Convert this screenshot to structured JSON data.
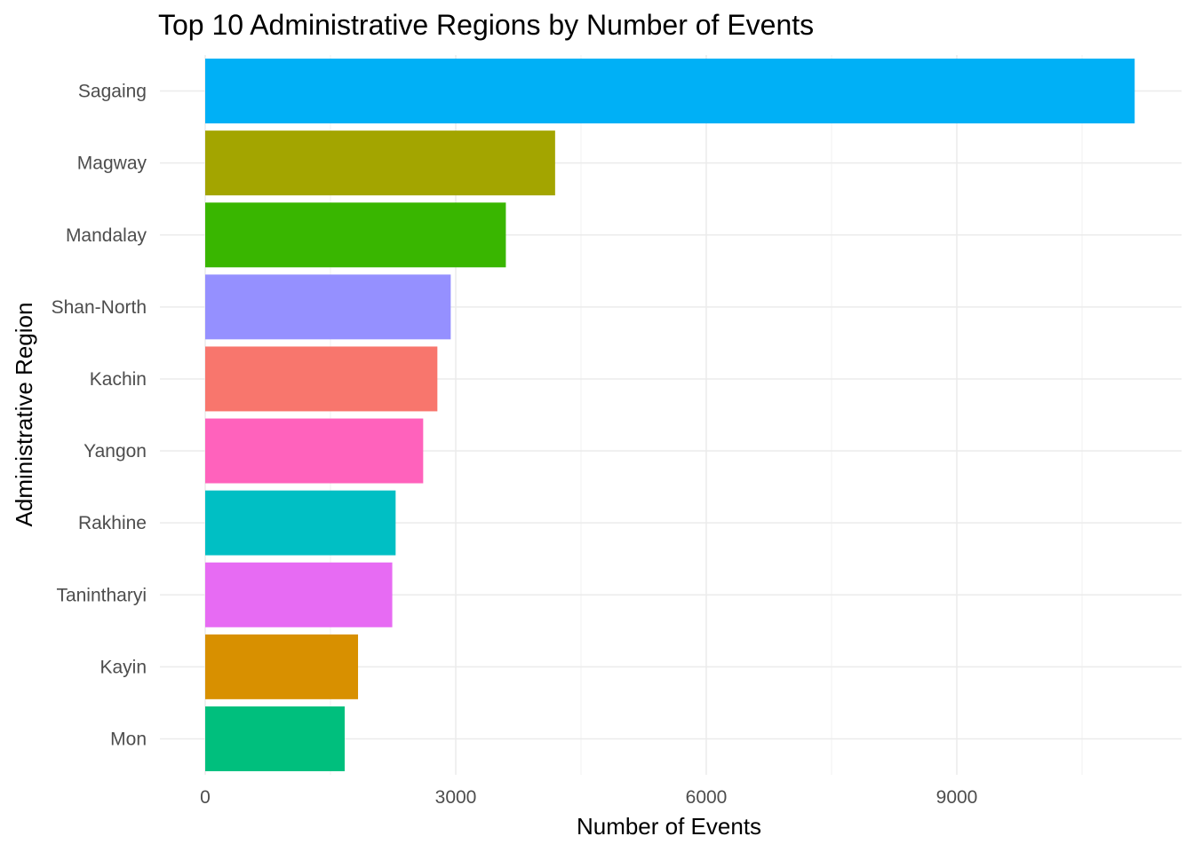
{
  "chart_data": {
    "type": "bar",
    "orientation": "horizontal",
    "title": "Top 10 Administrative Regions by Number of Events",
    "xlabel": "Number of Events",
    "ylabel": "Administrative Region",
    "xlim": [
      0,
      11700
    ],
    "x_ticks": [
      0,
      3000,
      6000,
      9000
    ],
    "x_tick_labels": [
      "0",
      "3000",
      "6000",
      "9000"
    ],
    "grid": true,
    "legend": "none",
    "categories": [
      "Sagaing",
      "Magway",
      "Mandalay",
      "Shan-North",
      "Kachin",
      "Yangon",
      "Rakhine",
      "Tanintharyi",
      "Kayin",
      "Mon"
    ],
    "values": [
      11130,
      4190,
      3600,
      2940,
      2780,
      2610,
      2280,
      2240,
      1830,
      1670
    ],
    "colors": [
      "#00B0F6",
      "#A3A500",
      "#39B600",
      "#9590FF",
      "#F8766D",
      "#FF62BC",
      "#00BFC4",
      "#E76BF3",
      "#D89000",
      "#00BF7D"
    ]
  }
}
